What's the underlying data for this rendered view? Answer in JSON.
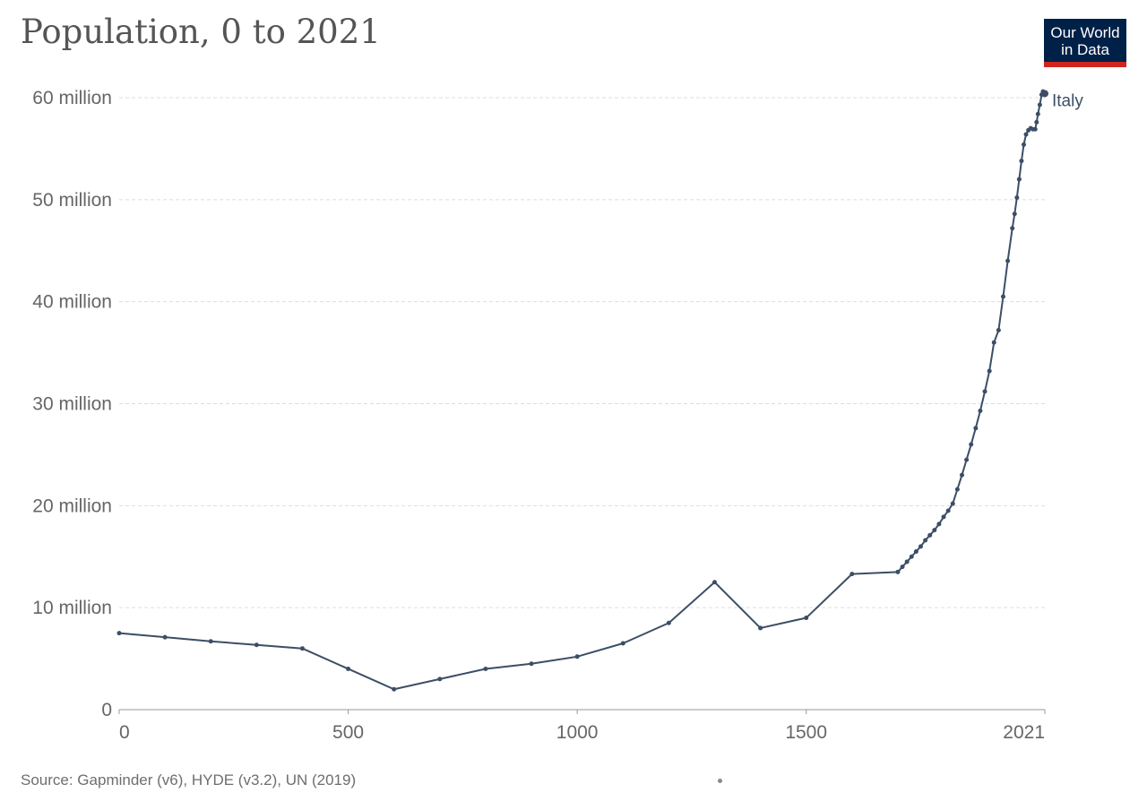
{
  "header": {
    "title": "Population, 0 to 2021"
  },
  "logo": {
    "line1": "Our World",
    "line2": "in Data",
    "colors": {
      "background": "#002147",
      "bar": "#ce261e"
    }
  },
  "footer": {
    "source": "Source: Gapminder (v6), HYDE (v3.2), UN (2019)"
  },
  "chart_data": {
    "type": "line",
    "title": "Population, 0 to 2021",
    "xlabel": "",
    "ylabel": "",
    "xlim": [
      0,
      2021
    ],
    "ylim": [
      0,
      60000000
    ],
    "grid": true,
    "x_ticks": [
      {
        "value": 0,
        "label": "0"
      },
      {
        "value": 500,
        "label": "500"
      },
      {
        "value": 1000,
        "label": "1000"
      },
      {
        "value": 1500,
        "label": "1500"
      },
      {
        "value": 2021,
        "label": "2021"
      }
    ],
    "y_ticks": [
      {
        "value": 0,
        "label": "0"
      },
      {
        "value": 10000000,
        "label": "10 million"
      },
      {
        "value": 20000000,
        "label": "20 million"
      },
      {
        "value": 30000000,
        "label": "30 million"
      },
      {
        "value": 40000000,
        "label": "40 million"
      },
      {
        "value": 50000000,
        "label": "50 million"
      },
      {
        "value": 60000000,
        "label": "60 million"
      }
    ],
    "series": [
      {
        "name": "Italy",
        "color": "#3c4e66",
        "points": [
          [
            0,
            7500000
          ],
          [
            100,
            7100000
          ],
          [
            200,
            6700000
          ],
          [
            300,
            6350000
          ],
          [
            400,
            6000000
          ],
          [
            500,
            4000000
          ],
          [
            600,
            2000000
          ],
          [
            700,
            3000000
          ],
          [
            800,
            4000000
          ],
          [
            900,
            4500000
          ],
          [
            1000,
            5200000
          ],
          [
            1100,
            6500000
          ],
          [
            1200,
            8500000
          ],
          [
            1300,
            12500000
          ],
          [
            1400,
            8000000
          ],
          [
            1500,
            9000000
          ],
          [
            1600,
            13300000
          ],
          [
            1700,
            13500000
          ],
          [
            1710,
            14000000
          ],
          [
            1720,
            14500000
          ],
          [
            1730,
            15000000
          ],
          [
            1740,
            15500000
          ],
          [
            1750,
            16000000
          ],
          [
            1760,
            16600000
          ],
          [
            1770,
            17100000
          ],
          [
            1780,
            17600000
          ],
          [
            1790,
            18200000
          ],
          [
            1800,
            18900000
          ],
          [
            1810,
            19500000
          ],
          [
            1820,
            20200000
          ],
          [
            1830,
            21600000
          ],
          [
            1840,
            23000000
          ],
          [
            1850,
            24500000
          ],
          [
            1860,
            26000000
          ],
          [
            1870,
            27600000
          ],
          [
            1880,
            29300000
          ],
          [
            1890,
            31200000
          ],
          [
            1900,
            33200000
          ],
          [
            1910,
            36000000
          ],
          [
            1920,
            37200000
          ],
          [
            1930,
            40500000
          ],
          [
            1940,
            44000000
          ],
          [
            1950,
            47200000
          ],
          [
            1955,
            48600000
          ],
          [
            1960,
            50200000
          ],
          [
            1965,
            52000000
          ],
          [
            1970,
            53800000
          ],
          [
            1975,
            55400000
          ],
          [
            1980,
            56400000
          ],
          [
            1985,
            56800000
          ],
          [
            1990,
            57000000
          ],
          [
            1995,
            56900000
          ],
          [
            2000,
            56900000
          ],
          [
            2003,
            57600000
          ],
          [
            2006,
            58400000
          ],
          [
            2010,
            59300000
          ],
          [
            2014,
            60300000
          ],
          [
            2017,
            60600000
          ],
          [
            2021,
            60400000
          ]
        ]
      }
    ]
  }
}
